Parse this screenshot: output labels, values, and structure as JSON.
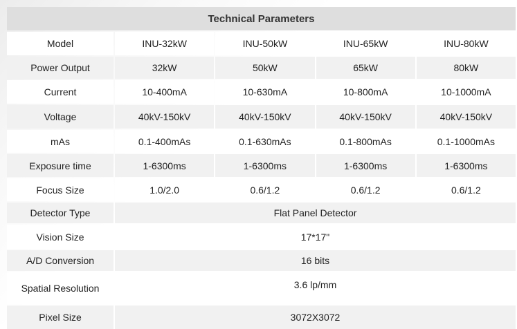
{
  "title": "Technical Parameters",
  "rows": [
    {
      "label": "Model",
      "values": [
        "INU-32kW",
        "INU-50kW",
        "INU-65kW",
        "INU-80kW"
      ]
    },
    {
      "label": "Power Output",
      "values": [
        "32kW",
        "50kW",
        "65kW",
        "80kW"
      ]
    },
    {
      "label": "Current",
      "values": [
        "10-400mA",
        "10-630mA",
        "10-800mA",
        "10-1000mA"
      ]
    },
    {
      "label": "Voltage",
      "values": [
        "40kV-150kV",
        "40kV-150kV",
        "40kV-150kV",
        "40kV-150kV"
      ]
    },
    {
      "label": "mAs",
      "values": [
        "0.1-400mAs",
        "0.1-630mAs",
        "0.1-800mAs",
        "0.1-1000mAs"
      ]
    },
    {
      "label": "Exposure time",
      "values": [
        "1-6300ms",
        "1-6300ms",
        "1-6300ms",
        "1-6300ms"
      ]
    },
    {
      "label": "Focus Size",
      "values": [
        "1.0/2.0",
        "0.6/1.2",
        "0.6/1.2",
        "0.6/1.2"
      ]
    }
  ],
  "shared_rows": [
    {
      "label": "Detector Type",
      "value": "Flat Panel Detector"
    },
    {
      "label": "Vision Size",
      "value": "17*17\""
    },
    {
      "label": "A/D Conversion",
      "value": "16 bits"
    },
    {
      "label": "Spatial Resolution",
      "value": "3.6 lp/mm"
    },
    {
      "label": "Pixel Size",
      "value": "3072X3072"
    }
  ]
}
